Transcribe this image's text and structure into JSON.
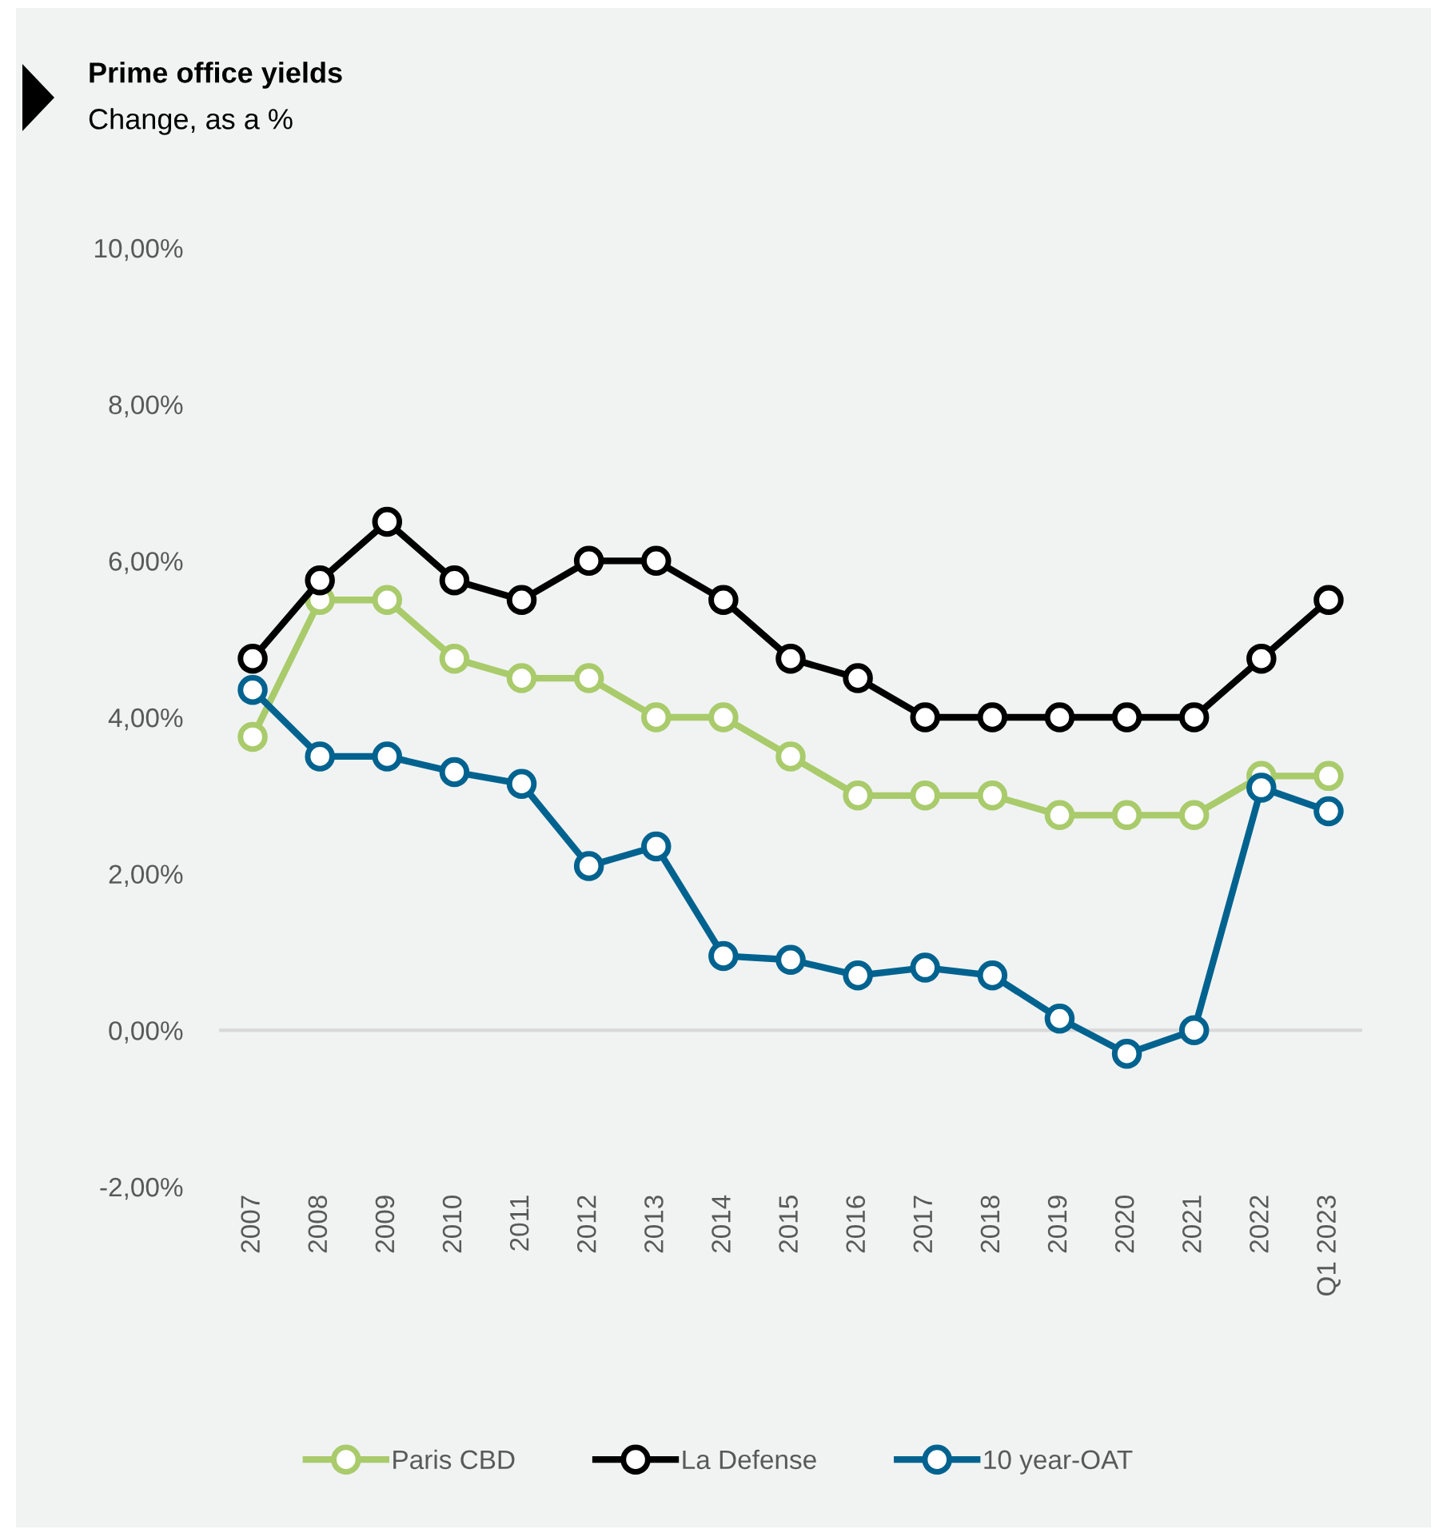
{
  "chart_data": {
    "type": "line",
    "title": "Prime office yields",
    "subtitle": "Change, as a %",
    "categories": [
      "2007",
      "2008",
      "2009",
      "2010",
      "2011",
      "2012",
      "2013",
      "2014",
      "2015",
      "2016",
      "2017",
      "2018",
      "2019",
      "2020",
      "2021",
      "2022",
      "Q1 2023"
    ],
    "series": [
      {
        "name": "Paris CBD",
        "color": "#a9cb6b",
        "values": [
          3.75,
          5.5,
          5.5,
          4.75,
          4.5,
          4.5,
          4.0,
          4.0,
          3.5,
          3.0,
          3.0,
          3.0,
          2.75,
          2.75,
          2.75,
          3.25,
          3.25
        ]
      },
      {
        "name": "La Defense",
        "color": "#000000",
        "values": [
          4.75,
          5.75,
          6.5,
          5.75,
          5.5,
          6.0,
          6.0,
          5.5,
          4.75,
          4.5,
          4.0,
          4.0,
          4.0,
          4.0,
          4.0,
          4.75,
          5.5
        ]
      },
      {
        "name": "10 year-OAT",
        "color": "#00628f",
        "values": [
          4.35,
          3.5,
          3.5,
          3.3,
          3.15,
          2.1,
          2.35,
          0.95,
          0.9,
          0.7,
          0.8,
          0.7,
          0.15,
          -0.3,
          0.0,
          3.1,
          2.8
        ]
      }
    ],
    "ylim": [
      -2,
      10
    ],
    "yticks": [
      {
        "value": -2,
        "label": "-2,00%"
      },
      {
        "value": 0,
        "label": "0,00%"
      },
      {
        "value": 2,
        "label": "2,00%"
      },
      {
        "value": 4,
        "label": "4,00%"
      },
      {
        "value": 6,
        "label": "6,00%"
      },
      {
        "value": 8,
        "label": "8,00%"
      },
      {
        "value": 10,
        "label": "10,00%"
      }
    ],
    "ref_lines": [
      {
        "axis": "y",
        "value": 0,
        "label": null,
        "color": "#d9d9d9"
      }
    ],
    "grid": false,
    "legend": "bottom",
    "marker": "circle",
    "line_style": "solid"
  }
}
